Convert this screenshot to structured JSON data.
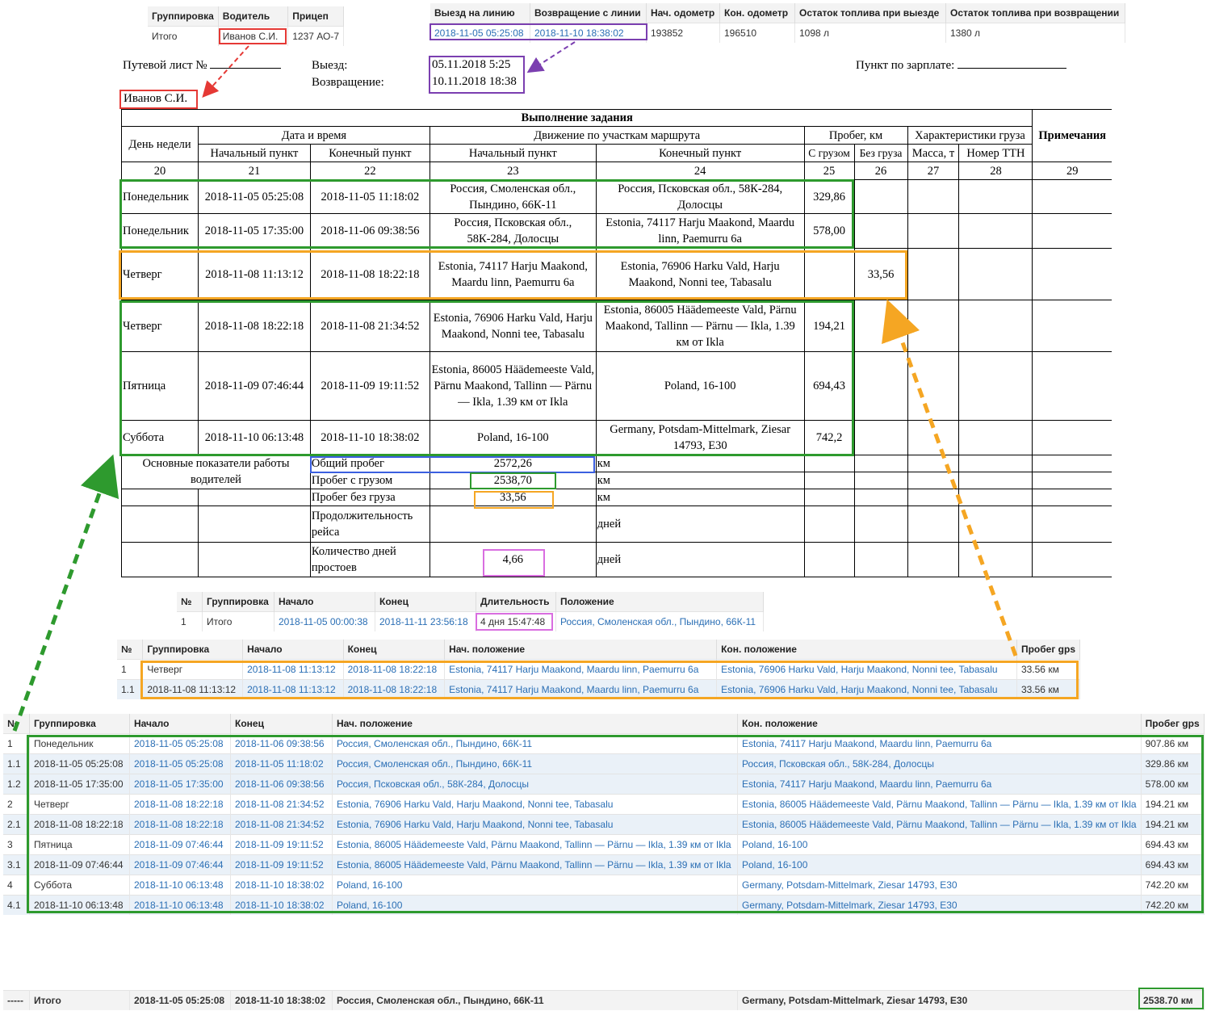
{
  "driver_table": {
    "headers": [
      "Группировка",
      "Водитель",
      "Прицеп"
    ],
    "row": [
      "Итого",
      "Иванов С.И.",
      "1237 АО-7"
    ]
  },
  "trip_table": {
    "headers": [
      "Выезд на линию",
      "Возвращение с линии",
      "Нач. одометр",
      "Кон. одометр",
      "Остаток топлива при выезде",
      "Остаток топлива при возвращении"
    ],
    "row": [
      "2018-11-05 05:25:08",
      "2018-11-10 18:38:02",
      "193852",
      "196510",
      "1098 л",
      "1380 л"
    ]
  },
  "waybill": {
    "title_label": "Путевой лист №",
    "driver": "Иванов С.И.",
    "depart_label": "Выезд:",
    "return_label": "Возвращение:",
    "depart_value": "05.11.2018 5:25",
    "return_value": "10.11.2018 18:38",
    "salary_label": "Пункт по зарплате:",
    "section_title": "Выполнение задания",
    "h_day": "День недели",
    "h_datetime": "Дата и время",
    "h_route": "Движение по участкам маршрута",
    "h_mileage": "Пробег, км",
    "h_cargo": "Характеристики груза",
    "h_notes": "Примечания",
    "h_start": "Начальный пункт",
    "h_end": "Конечный пункт",
    "h_route_start": "Начальный пункт",
    "h_route_end": "Конечный пункт",
    "h_loaded": "С грузом",
    "h_empty": "Без груза",
    "h_mass": "Масса, т",
    "h_ttn": "Номер ТТН",
    "col_numbers": [
      "20",
      "21",
      "22",
      "23",
      "24",
      "25",
      "26",
      "27",
      "28",
      "29"
    ],
    "rows": [
      {
        "day": "Понедельник",
        "start": "2018-11-05 05:25:08",
        "end": "2018-11-05 11:18:02",
        "from": "Россия, Смоленская обл., Пындино, 66К-11",
        "to": "Россия, Псковская обл., 58К-284, Долосцы",
        "loaded": "329,86",
        "empty": ""
      },
      {
        "day": "Понедельник",
        "start": "2018-11-05 17:35:00",
        "end": "2018-11-06 09:38:56",
        "from": "Россия, Псковская обл., 58К-284, Долосцы",
        "to": "Estonia, 74117 Harju Maakond, Maardu linn, Paemurru 6a",
        "loaded": "578,00",
        "empty": ""
      },
      {
        "day": "Четверг",
        "start": "2018-11-08 11:13:12",
        "end": "2018-11-08 18:22:18",
        "from": "Estonia, 74117 Harju Maakond, Maardu linn, Paemurru 6a",
        "to": "Estonia, 76906 Harku Vald, Harju Maakond, Nonni tee, Tabasalu",
        "loaded": "",
        "empty": "33,56"
      },
      {
        "day": "Четверг",
        "start": "2018-11-08 18:22:18",
        "end": "2018-11-08 21:34:52",
        "from": "Estonia, 76906 Harku Vald, Harju Maakond, Nonni tee, Tabasalu",
        "to": "Estonia, 86005 Häädemeeste Vald, Pärnu Maakond, Tallinn — Pärnu — Ikla, 1.39 км от Ikla",
        "loaded": "194,21",
        "empty": ""
      },
      {
        "day": "Пятница",
        "start": "2018-11-09 07:46:44",
        "end": "2018-11-09 19:11:52",
        "from": "Estonia, 86005 Häädemeeste Vald, Pärnu Maakond, Tallinn — Pärnu — Ikla, 1.39 км от Ikla",
        "to": "Poland,  16-100",
        "loaded": "694,43",
        "empty": ""
      },
      {
        "day": "Суббота",
        "start": "2018-11-10 06:13:48",
        "end": "2018-11-10 18:38:02",
        "from": "Poland,  16-100",
        "to": "Germany, Potsdam-Mittelmark, Ziesar 14793, E30",
        "loaded": "742,2",
        "empty": ""
      }
    ],
    "summary_title": "Основные показатели работы водителей",
    "summary": [
      {
        "label": "Общий пробег",
        "value": "2572,26",
        "unit": "км"
      },
      {
        "label": "Пробег с грузом",
        "value": "2538,70",
        "unit": "км"
      },
      {
        "label": "Пробег без груза",
        "value": "33,56",
        "unit": "км"
      },
      {
        "label": "Продолжительность рейса",
        "value": "",
        "unit": "дней"
      },
      {
        "label": "Количество дней простоев",
        "value": "4,66",
        "unit": "дней"
      }
    ]
  },
  "stops_table": {
    "headers": [
      "№",
      "Группировка",
      "Начало",
      "Конец",
      "Длительность",
      "Положение"
    ],
    "rows": [
      [
        "1",
        "Итого",
        "2018-11-05 00:00:38",
        "2018-11-11 23:56:18",
        "4 дня 15:47:48",
        "Россия, Смоленская обл., Пындино, 66К-11"
      ]
    ]
  },
  "empty_trips": {
    "headers": [
      "№",
      "Группировка",
      "Начало",
      "Конец",
      "Нач. положение",
      "Кон. положение",
      "Пробег gps"
    ],
    "rows": [
      [
        "1",
        "Четверг",
        "2018-11-08 11:13:12",
        "2018-11-08 18:22:18",
        "Estonia, 74117 Harju Maakond, Maardu linn, Paemurru 6a",
        "Estonia, 76906 Harku Vald, Harju Maakond, Nonni tee, Tabasalu",
        "33.56 км"
      ],
      [
        "1.1",
        "2018-11-08 11:13:12",
        "2018-11-08 11:13:12",
        "2018-11-08 18:22:18",
        "Estonia, 74117 Harju Maakond, Maardu linn, Paemurru 6a",
        "Estonia, 76906 Harku Vald, Harju Maakond, Nonni tee, Tabasalu",
        "33.56 км"
      ]
    ]
  },
  "loaded_trips": {
    "headers": [
      "№",
      "Группировка",
      "Начало",
      "Конец",
      "Нач. положение",
      "Кон. положение",
      "Пробег gps"
    ],
    "rows": [
      [
        "1",
        "Понедельник",
        "2018-11-05 05:25:08",
        "2018-11-06 09:38:56",
        "Россия, Смоленская обл., Пындино, 66К-11",
        "Estonia, 74117 Harju Maakond, Maardu linn, Paemurru 6a",
        "907.86 км"
      ],
      [
        "1.1",
        "2018-11-05 05:25:08",
        "2018-11-05 05:25:08",
        "2018-11-05 11:18:02",
        "Россия, Смоленская обл., Пындино, 66К-11",
        "Россия, Псковская обл., 58К-284, Долосцы",
        "329.86 км"
      ],
      [
        "1.2",
        "2018-11-05 17:35:00",
        "2018-11-05 17:35:00",
        "2018-11-06 09:38:56",
        "Россия, Псковская обл., 58К-284, Долосцы",
        "Estonia, 74117 Harju Maakond, Maardu linn, Paemurru 6a",
        "578.00 км"
      ],
      [
        "2",
        "Четверг",
        "2018-11-08 18:22:18",
        "2018-11-08 21:34:52",
        "Estonia, 76906 Harku Vald, Harju Maakond, Nonni tee, Tabasalu",
        "Estonia, 86005 Häädemeeste Vald, Pärnu Maakond, Tallinn — Pärnu — Ikla, 1.39 км от Ikla",
        "194.21 км"
      ],
      [
        "2.1",
        "2018-11-08 18:22:18",
        "2018-11-08 18:22:18",
        "2018-11-08 21:34:52",
        "Estonia, 76906 Harku Vald, Harju Maakond, Nonni tee, Tabasalu",
        "Estonia, 86005 Häädemeeste Vald, Pärnu Maakond, Tallinn — Pärnu — Ikla, 1.39 км от Ikla",
        "194.21 км"
      ],
      [
        "3",
        "Пятница",
        "2018-11-09 07:46:44",
        "2018-11-09 19:11:52",
        "Estonia, 86005 Häädemeeste Vald, Pärnu Maakond, Tallinn — Pärnu — Ikla, 1.39 км от Ikla",
        "Poland, 16-100",
        "694.43 км"
      ],
      [
        "3.1",
        "2018-11-09 07:46:44",
        "2018-11-09 07:46:44",
        "2018-11-09 19:11:52",
        "Estonia, 86005 Häädemeeste Vald, Pärnu Maakond, Tallinn — Pärnu — Ikla, 1.39 км от Ikla",
        "Poland, 16-100",
        "694.43 км"
      ],
      [
        "4",
        "Суббота",
        "2018-11-10 06:13:48",
        "2018-11-10 18:38:02",
        "Poland, 16-100",
        "Germany, Potsdam-Mittelmark, Ziesar 14793, E30",
        "742.20 км"
      ],
      [
        "4.1",
        "2018-11-10 06:13:48",
        "2018-11-10 06:13:48",
        "2018-11-10 18:38:02",
        "Poland, 16-100",
        "Germany, Potsdam-Mittelmark, Ziesar 14793, E30",
        "742.20 км"
      ]
    ],
    "total": [
      "-----",
      "Итого",
      "2018-11-05 05:25:08",
      "2018-11-10 18:38:02",
      "Россия, Смоленская обл., Пындино, 66К-11",
      "Germany, Potsdam-Mittelmark, Ziesar 14793, E30",
      "2538.70 км"
    ]
  },
  "colors": {
    "red": "#e53935",
    "purple": "#7b3fb0",
    "green": "#2e9a2e",
    "orange": "#f5a623",
    "blue": "#3b5fe0",
    "pink": "#d96ee0",
    "link": "#2b6fb5"
  }
}
